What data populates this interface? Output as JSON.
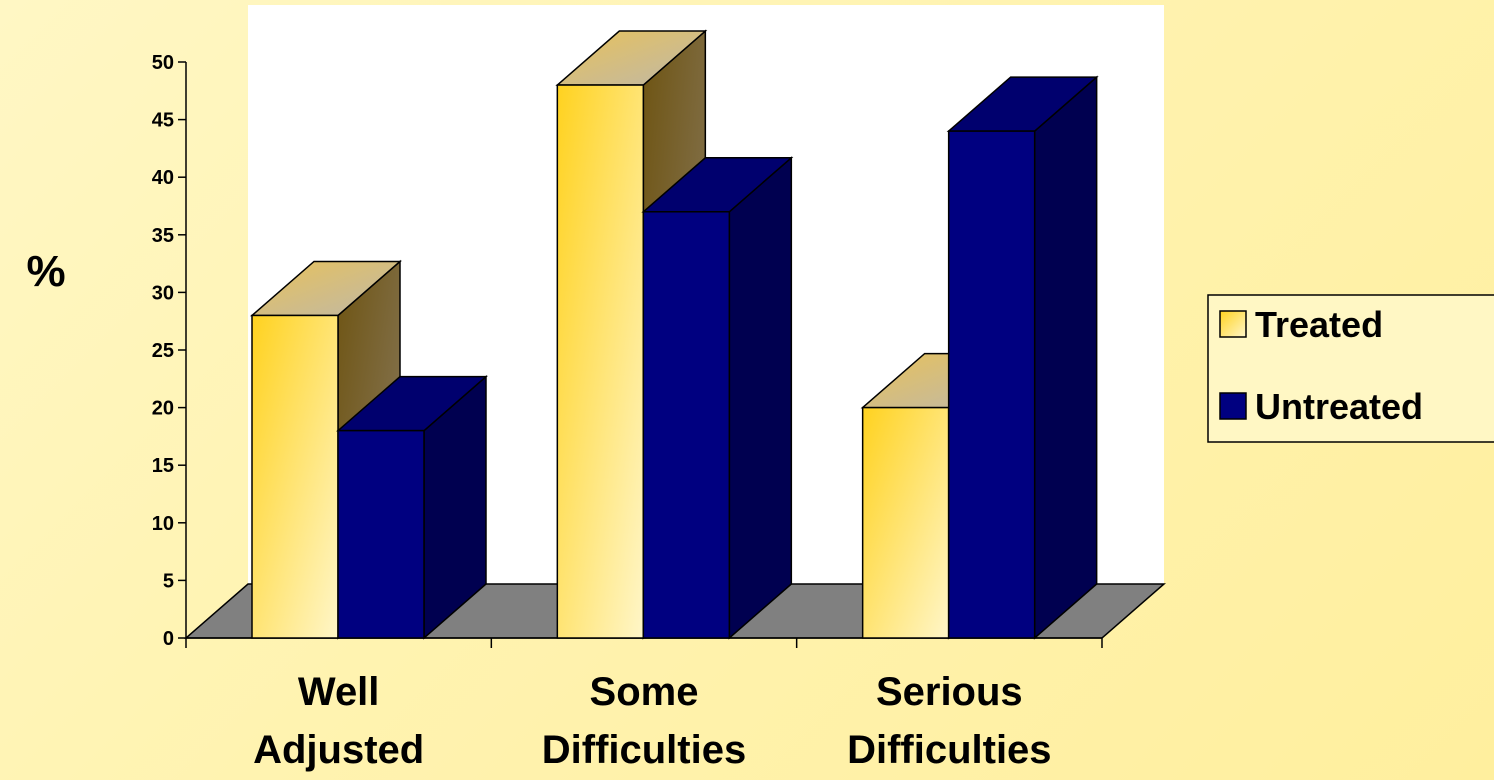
{
  "chart_data": {
    "type": "bar",
    "title": "",
    "xlabel": "",
    "ylabel": "%",
    "ylim": [
      0,
      50
    ],
    "ytick_step": 5,
    "yticks": [
      "0",
      "5",
      "10",
      "15",
      "20",
      "25",
      "30",
      "35",
      "40",
      "45",
      "50"
    ],
    "categories": [
      [
        "Well",
        "Adjusted"
      ],
      [
        "Some",
        "Difficulties"
      ],
      [
        "Serious",
        "Difficulties"
      ]
    ],
    "series": [
      {
        "name": "Treated",
        "values": [
          28,
          48,
          20
        ],
        "color": "#ffd21f",
        "color_light": "#fff6c8"
      },
      {
        "name": "Untreated",
        "values": [
          18,
          37,
          44
        ],
        "color": "#000080"
      }
    ],
    "legend_position": "right",
    "three_d": true,
    "floor_color": "#808080",
    "grid": false
  }
}
